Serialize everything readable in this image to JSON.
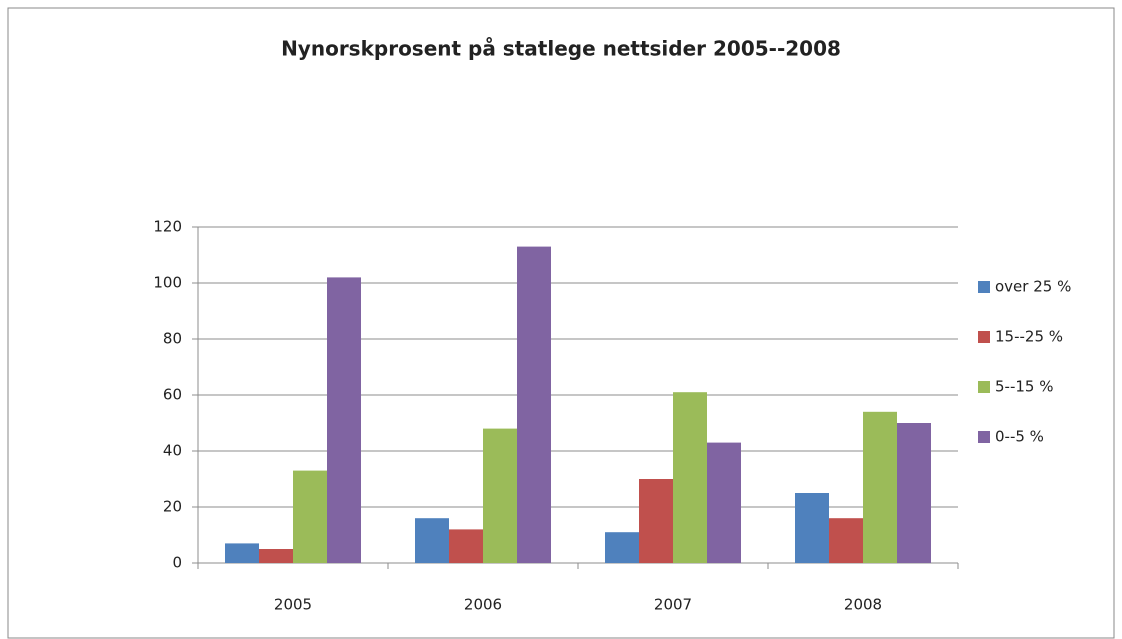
{
  "chart_data": {
    "type": "bar",
    "title": "Nynorskprosent på statlege nettsider 2005--2008",
    "categories": [
      "2005",
      "2006",
      "2007",
      "2008"
    ],
    "series": [
      {
        "name": "over 25 %",
        "color": "#4f81bd",
        "values": [
          7,
          16,
          11,
          25
        ]
      },
      {
        "name": "15--25 %",
        "color": "#c0504d",
        "values": [
          5,
          12,
          30,
          16
        ]
      },
      {
        "name": "5--15 %",
        "color": "#9bbb59",
        "values": [
          33,
          48,
          61,
          54
        ]
      },
      {
        "name": "0--5 %",
        "color": "#8064a2",
        "values": [
          102,
          113,
          43,
          50
        ]
      }
    ],
    "ylim": [
      0,
      120
    ],
    "yticks": [
      0,
      20,
      40,
      60,
      80,
      100,
      120
    ],
    "grid": true,
    "legend": "right"
  }
}
